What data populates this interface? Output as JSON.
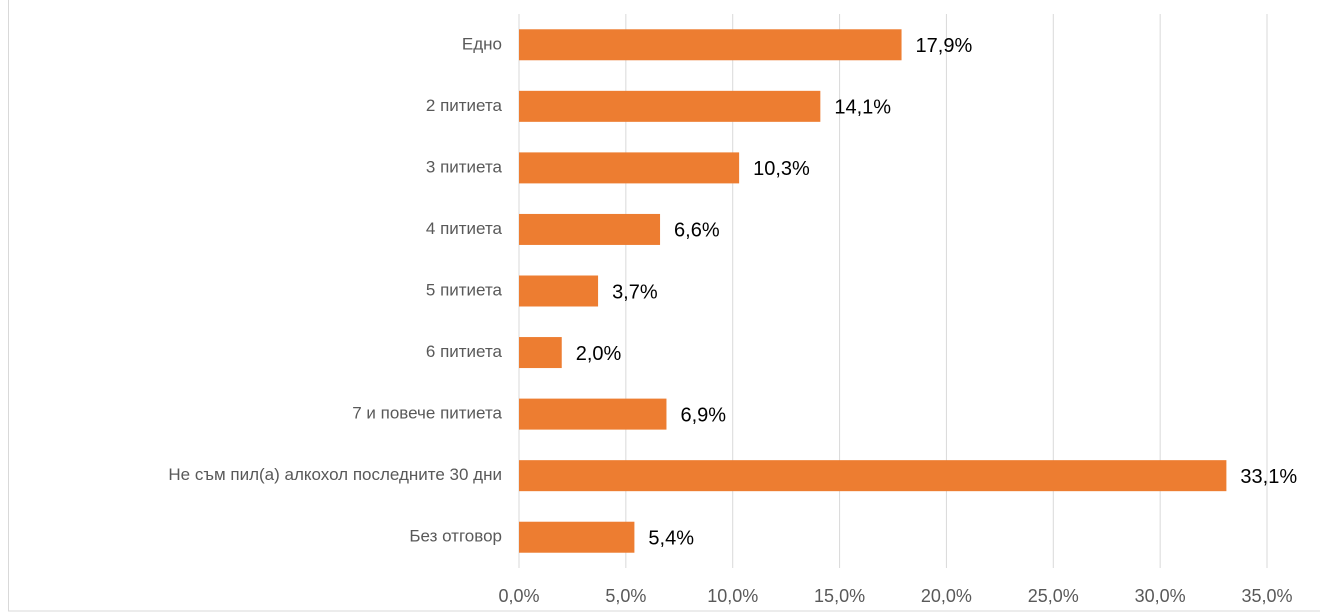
{
  "chart_data": {
    "type": "bar",
    "orientation": "horizontal",
    "categories": [
      "Едно",
      "2 питиета",
      "3 питиета",
      "4 питиета",
      "5 питиета",
      "6 питиета",
      "7 и повече питиета",
      "Не съм пил(а) алкохол последните 30 дни",
      "Без отговор"
    ],
    "values": [
      17.9,
      14.1,
      10.3,
      6.6,
      3.7,
      2.0,
      6.9,
      33.1,
      5.4
    ],
    "value_labels": [
      "17,9%",
      "14,1%",
      "10,3%",
      "6,6%",
      "3,7%",
      "2,0%",
      "6,9%",
      "33,1%",
      "5,4%"
    ],
    "color": "#ed7d31",
    "xlim": [
      0,
      35
    ],
    "xticks": [
      {
        "value": 0,
        "label": "0,0%"
      },
      {
        "value": 5,
        "label": "5,0%"
      },
      {
        "value": 10,
        "label": "10,0%"
      },
      {
        "value": 15,
        "label": "15,0%"
      },
      {
        "value": 20,
        "label": "20,0%"
      },
      {
        "value": 25,
        "label": "25,0%"
      },
      {
        "value": 30,
        "label": "30,0%"
      },
      {
        "value": 35,
        "label": "35,0%"
      }
    ],
    "grid": true
  }
}
